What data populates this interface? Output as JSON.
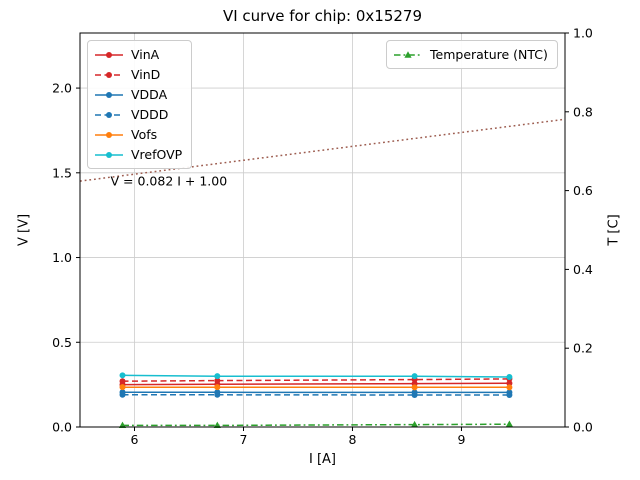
{
  "chart_data": {
    "type": "line",
    "title": "VI curve for chip: 0x15279",
    "x_axis": {
      "label": "I [A]",
      "min": 5.5,
      "max": 9.95,
      "tick_values": [
        6,
        7,
        8,
        9
      ],
      "tick_labels": [
        "6",
        "7",
        "8",
        "9"
      ]
    },
    "y_axis_left": {
      "label": "V [V]",
      "min": 0.0,
      "max": 2.325,
      "tick_values": [
        0.0,
        0.5,
        1.0,
        1.5,
        2.0
      ],
      "tick_labels": [
        "0.0",
        "0.5",
        "1.0",
        "1.5",
        "2.0"
      ]
    },
    "y_axis_right": {
      "label": "T [C]",
      "min": 0.0,
      "max": 1.0,
      "tick_values": [
        0.0,
        0.2,
        0.4,
        0.6,
        0.8,
        1.0
      ],
      "tick_labels": [
        "0.0",
        "0.2",
        "0.4",
        "0.6",
        "0.8",
        "1.0"
      ]
    },
    "x": [
      5.89,
      6.76,
      8.57,
      9.44
    ],
    "series": [
      {
        "name": "VinA",
        "axis": "left",
        "color": "#d62728",
        "dash": "solid",
        "marker": "circle",
        "values": [
          0.25,
          0.252,
          0.256,
          0.258
        ]
      },
      {
        "name": "VinD",
        "axis": "left",
        "color": "#d62728",
        "dash": "dashed",
        "marker": "circle",
        "values": [
          0.27,
          0.274,
          0.28,
          0.284
        ]
      },
      {
        "name": "VDDA",
        "axis": "left",
        "color": "#1f77b4",
        "dash": "solid",
        "marker": "circle",
        "values": [
          0.205,
          0.205,
          0.204,
          0.204
        ]
      },
      {
        "name": "VDDD",
        "axis": "left",
        "color": "#1f77b4",
        "dash": "dashed",
        "marker": "circle",
        "values": [
          0.19,
          0.19,
          0.189,
          0.189
        ]
      },
      {
        "name": "Vofs",
        "axis": "left",
        "color": "#ff7f0e",
        "dash": "solid",
        "marker": "circle",
        "values": [
          0.235,
          0.235,
          0.234,
          0.234
        ]
      },
      {
        "name": "VrefOVP",
        "axis": "left",
        "color": "#17becf",
        "dash": "solid",
        "marker": "circle",
        "values": [
          0.305,
          0.3,
          0.3,
          0.295
        ]
      },
      {
        "name": "Temperature (NTC)",
        "axis": "right",
        "color": "#2ca02c",
        "dash": "dashdot",
        "marker": "triangle",
        "values": [
          0.004,
          0.004,
          0.006,
          0.007
        ]
      }
    ],
    "fit_line": {
      "equation": "V = 0.082 I + 1.00",
      "slope": 0.082,
      "intercept": 1.0,
      "color": "#9d5d50",
      "dash": "dotted",
      "x_start": 5.5,
      "x_end": 9.95
    },
    "annotation": {
      "text": "V = 0.082 I + 1.00",
      "x": 5.78,
      "y": 1.45
    },
    "legends": {
      "left": [
        "VinA",
        "VinD",
        "VDDA",
        "VDDD",
        "Vofs",
        "VrefOVP"
      ],
      "right": [
        "Temperature (NTC)"
      ]
    },
    "grid": true,
    "grid_color": "#cccccc"
  }
}
